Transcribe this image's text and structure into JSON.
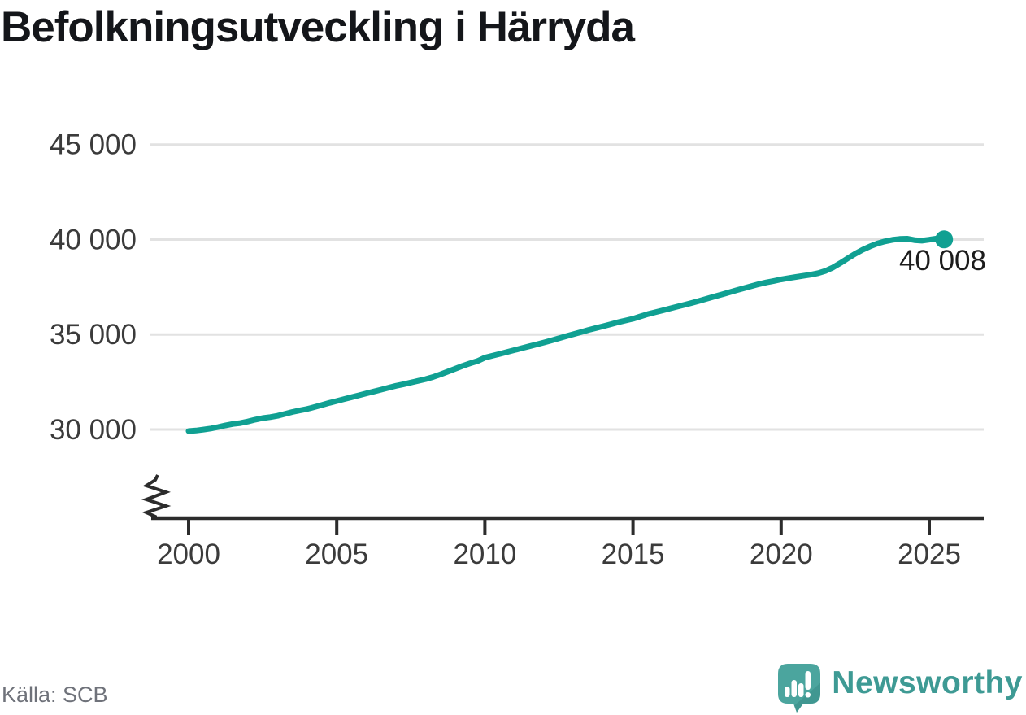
{
  "title": "Befolkningsutveckling i Härryda",
  "source": {
    "label": "Källa: SCB"
  },
  "branding": {
    "name": "Newsworthy",
    "icon": "newsworthy-speech-bubble-bar-chart-icon",
    "icon_color": "#4ba59e",
    "icon_shade_color": "#2f7f79",
    "icon_bar_color": "#ffffff",
    "text_color": "#3e9a94"
  },
  "colors": {
    "background": "#ffffff",
    "line": "#10a092",
    "grid": "#e2e2e2",
    "axis": "#2c2c2c",
    "tick_label": "#3b3b3b",
    "title_text": "#14161a",
    "source_text": "#6f727a",
    "end_label": "#1c1c1c"
  },
  "chart_data": {
    "type": "line",
    "title": "Befolkningsutveckling i Härryda",
    "xlabel": "",
    "ylabel": "",
    "grid": "horizontal-only",
    "legend": "none",
    "y_axis_break_marker": true,
    "ylim": [
      29500,
      46000
    ],
    "yticks": [
      30000,
      35000,
      40000,
      45000
    ],
    "ytick_labels": [
      "30 000",
      "35 000",
      "40 000",
      "45 000"
    ],
    "xticks": [
      2000,
      2005,
      2010,
      2015,
      2020,
      2025
    ],
    "xtick_labels": [
      "2000",
      "2005",
      "2010",
      "2015",
      "2020",
      "2025"
    ],
    "x": [
      2000,
      2000.25,
      2000.5,
      2000.75,
      2001,
      2001.25,
      2001.5,
      2001.75,
      2002,
      2002.25,
      2002.5,
      2002.75,
      2003,
      2003.25,
      2003.5,
      2003.75,
      2004,
      2004.25,
      2004.5,
      2004.75,
      2005,
      2005.25,
      2005.5,
      2005.75,
      2006,
      2006.25,
      2006.5,
      2006.75,
      2007,
      2007.25,
      2007.5,
      2007.75,
      2008,
      2008.25,
      2008.5,
      2008.75,
      2009,
      2009.25,
      2009.5,
      2009.75,
      2010,
      2010.25,
      2010.5,
      2010.75,
      2011,
      2011.25,
      2011.5,
      2011.75,
      2012,
      2012.25,
      2012.5,
      2012.75,
      2013,
      2013.25,
      2013.5,
      2013.75,
      2014,
      2014.25,
      2014.5,
      2014.75,
      2015,
      2015.25,
      2015.5,
      2015.75,
      2016,
      2016.25,
      2016.5,
      2016.75,
      2017,
      2017.25,
      2017.5,
      2017.75,
      2018,
      2018.25,
      2018.5,
      2018.75,
      2019,
      2019.25,
      2019.5,
      2019.75,
      2020,
      2020.25,
      2020.5,
      2020.75,
      2021,
      2021.25,
      2021.5,
      2021.75,
      2022,
      2022.25,
      2022.5,
      2022.75,
      2023,
      2023.25,
      2023.5,
      2023.75,
      2024,
      2024.25,
      2024.5,
      2024.75,
      2025,
      2025.25,
      2025.5
    ],
    "values": [
      29915,
      29945,
      29995,
      30050,
      30130,
      30220,
      30290,
      30340,
      30420,
      30520,
      30600,
      30650,
      30720,
      30820,
      30920,
      31000,
      31080,
      31180,
      31290,
      31400,
      31500,
      31600,
      31700,
      31800,
      31900,
      32000,
      32100,
      32200,
      32300,
      32380,
      32470,
      32560,
      32650,
      32760,
      32900,
      33050,
      33200,
      33350,
      33480,
      33600,
      33780,
      33880,
      33980,
      34080,
      34180,
      34280,
      34380,
      34480,
      34580,
      34690,
      34800,
      34910,
      35020,
      35130,
      35240,
      35340,
      35440,
      35540,
      35650,
      35740,
      35830,
      35950,
      36070,
      36170,
      36270,
      36370,
      36470,
      36570,
      36670,
      36780,
      36890,
      37000,
      37110,
      37220,
      37330,
      37440,
      37550,
      37650,
      37740,
      37820,
      37900,
      37970,
      38030,
      38090,
      38150,
      38230,
      38350,
      38530,
      38760,
      39010,
      39250,
      39460,
      39640,
      39790,
      39900,
      39980,
      40030,
      40040,
      39970,
      39940,
      39990,
      40050,
      40008
    ],
    "last_point_x": 2025.5,
    "last_point_value": 40008,
    "last_point_label": "40 008"
  }
}
